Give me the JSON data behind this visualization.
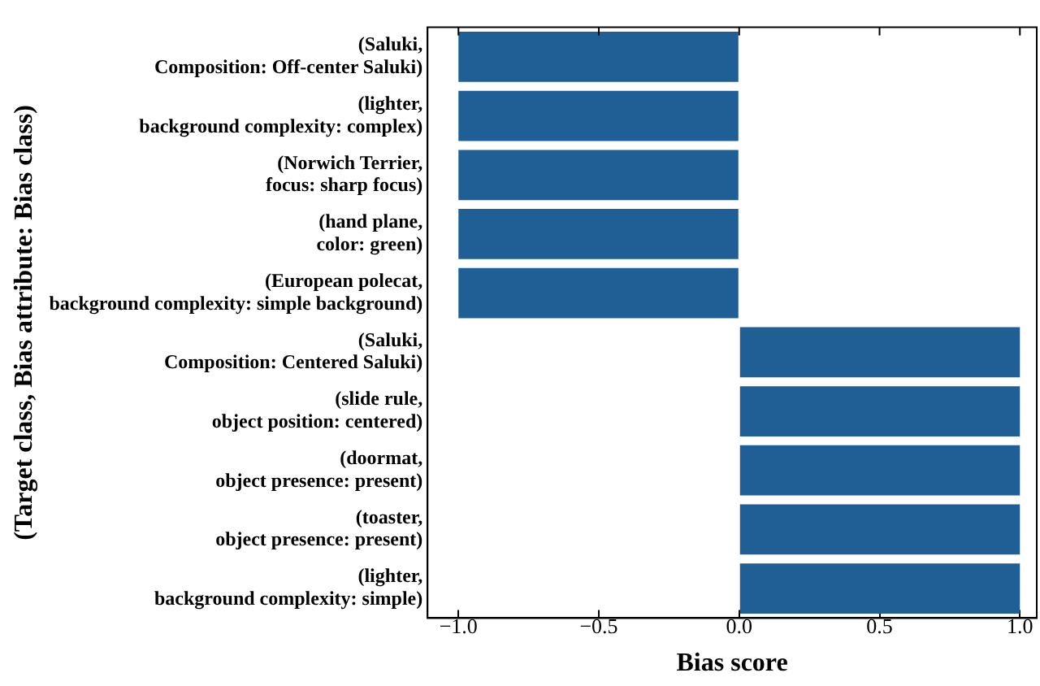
{
  "chart_data": {
    "type": "bar",
    "orientation": "horizontal",
    "xlabel": "Bias score",
    "ylabel": "(Target class, Bias attribute: Bias class)",
    "categories": [
      "(Saluki,\nComposition: Off-center Saluki)",
      "(lighter,\nbackground complexity: complex)",
      "(Norwich Terrier,\nfocus: sharp focus)",
      "(hand plane,\ncolor: green)",
      "(European polecat,\nbackground complexity: simple background)",
      "(Saluki,\nComposition: Centered Saluki)",
      "(slide rule,\nobject position: centered)",
      "(doormat,\nobject presence: present)",
      "(toaster,\nobject presence: present)",
      "(lighter,\nbackground complexity: simple)"
    ],
    "values": [
      -1,
      -1,
      -1,
      -1,
      -1,
      1,
      1,
      1,
      1,
      1
    ],
    "color": "#1f5f96",
    "xlim": [
      -1.11,
      1.06
    ],
    "xticks": [
      {
        "value": -1,
        "label": "−1.0"
      },
      {
        "value": -0.5,
        "label": "−0.5"
      },
      {
        "value": 0,
        "label": "0.0"
      },
      {
        "value": 0.5,
        "label": "0.5"
      },
      {
        "value": 1,
        "label": "1.0"
      }
    ],
    "grid": false,
    "legend": false
  }
}
